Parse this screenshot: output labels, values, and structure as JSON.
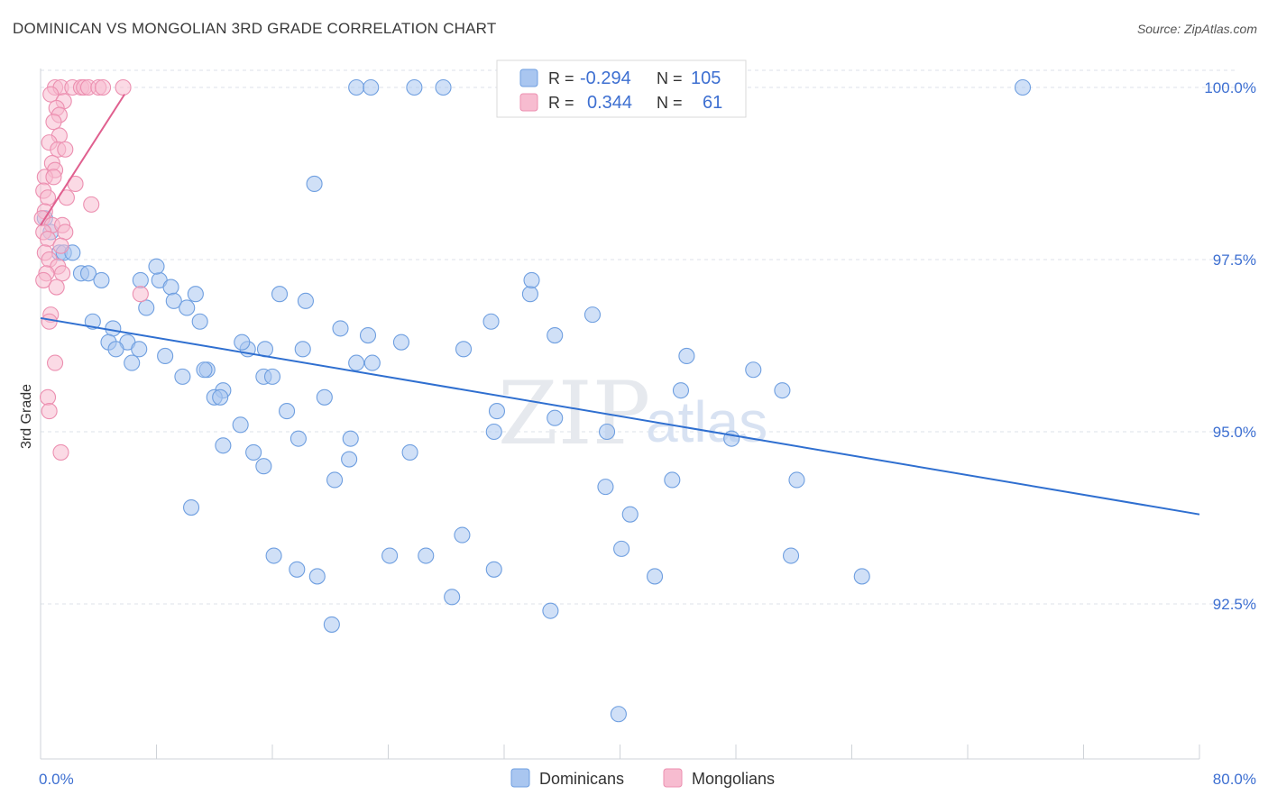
{
  "header": {
    "title": "DOMINICAN VS MONGOLIAN 3RD GRADE CORRELATION CHART",
    "source": "Source: ZipAtlas.com"
  },
  "watermark": {
    "zip": "ZIP",
    "atlas": "atlas"
  },
  "legend_top": {
    "rows": [
      {
        "r_label": "R =",
        "r_value": "-0.294",
        "n_label": "N =",
        "n_value": "105"
      },
      {
        "r_label": "R =",
        "r_value": "0.344",
        "n_label": "N =",
        "n_value": "61"
      }
    ]
  },
  "legend_bottom": {
    "items": [
      "Dominicans",
      "Mongolians"
    ]
  },
  "colors": {
    "dominicans_fill": "#a9c6f0",
    "dominicans_stroke": "#6f9fe0",
    "dominicans_line": "#2f6fd0",
    "mongolians_fill": "#f7bcd0",
    "mongolians_stroke": "#ec8fb0",
    "mongolians_line": "#e0608f",
    "tick_text": "#3d6fd1",
    "grid": "#dde2ea"
  },
  "chart_data": {
    "type": "scatter",
    "title": "DOMINICAN VS MONGOLIAN 3RD GRADE CORRELATION CHART",
    "xlabel": "",
    "ylabel": "3rd Grade",
    "xlim": [
      0,
      80
    ],
    "ylim": [
      90.0,
      101.0
    ],
    "x_tick_labels": [
      "0.0%",
      "80.0%"
    ],
    "y_ticks": [
      92.5,
      95.0,
      97.5,
      100.0
    ],
    "y_tick_labels": [
      "92.5%",
      "95.0%",
      "97.5%",
      "100.0%"
    ],
    "grid": true,
    "legend_position": "bottom-center",
    "series": [
      {
        "name": "Dominicans",
        "r": -0.294,
        "n": 105,
        "trend": {
          "x": [
            0,
            80
          ],
          "y": [
            96.65,
            93.8
          ]
        },
        "points": [
          [
            21.8,
            100.0
          ],
          [
            22.8,
            100.0
          ],
          [
            25.8,
            100.0
          ],
          [
            27.8,
            100.0
          ],
          [
            67.8,
            100.0
          ],
          [
            18.9,
            98.6
          ],
          [
            0.3,
            98.1
          ],
          [
            0.7,
            97.9
          ],
          [
            1.3,
            97.6
          ],
          [
            1.6,
            97.6
          ],
          [
            2.2,
            97.6
          ],
          [
            2.8,
            97.3
          ],
          [
            3.3,
            97.3
          ],
          [
            4.2,
            97.2
          ],
          [
            6.9,
            97.2
          ],
          [
            8.2,
            97.2
          ],
          [
            8.0,
            97.4
          ],
          [
            9.0,
            97.1
          ],
          [
            10.7,
            97.0
          ],
          [
            7.3,
            96.8
          ],
          [
            9.2,
            96.9
          ],
          [
            10.1,
            96.8
          ],
          [
            11.0,
            96.6
          ],
          [
            16.5,
            97.0
          ],
          [
            18.3,
            96.9
          ],
          [
            3.6,
            96.6
          ],
          [
            5.0,
            96.5
          ],
          [
            4.7,
            96.3
          ],
          [
            6.0,
            96.3
          ],
          [
            5.2,
            96.2
          ],
          [
            6.8,
            96.2
          ],
          [
            8.6,
            96.1
          ],
          [
            6.3,
            96.0
          ],
          [
            14.3,
            96.2
          ],
          [
            13.9,
            96.3
          ],
          [
            15.5,
            96.2
          ],
          [
            18.1,
            96.2
          ],
          [
            20.7,
            96.5
          ],
          [
            22.6,
            96.4
          ],
          [
            24.9,
            96.3
          ],
          [
            29.2,
            96.2
          ],
          [
            31.1,
            96.6
          ],
          [
            33.8,
            97.0
          ],
          [
            33.9,
            97.2
          ],
          [
            35.5,
            96.4
          ],
          [
            38.1,
            96.7
          ],
          [
            9.8,
            95.8
          ],
          [
            11.5,
            95.9
          ],
          [
            11.3,
            95.9
          ],
          [
            15.4,
            95.8
          ],
          [
            16.0,
            95.8
          ],
          [
            12.6,
            95.6
          ],
          [
            12.0,
            95.5
          ],
          [
            12.4,
            95.5
          ],
          [
            21.8,
            96.0
          ],
          [
            22.9,
            96.0
          ],
          [
            44.6,
            96.1
          ],
          [
            44.2,
            95.6
          ],
          [
            49.2,
            95.9
          ],
          [
            51.2,
            95.6
          ],
          [
            17.0,
            95.3
          ],
          [
            19.6,
            95.5
          ],
          [
            13.8,
            95.1
          ],
          [
            31.5,
            95.3
          ],
          [
            35.5,
            95.2
          ],
          [
            31.3,
            95.0
          ],
          [
            39.1,
            95.0
          ],
          [
            47.7,
            94.9
          ],
          [
            12.6,
            94.8
          ],
          [
            17.8,
            94.9
          ],
          [
            21.4,
            94.9
          ],
          [
            14.7,
            94.7
          ],
          [
            15.4,
            94.5
          ],
          [
            21.3,
            94.6
          ],
          [
            25.5,
            94.7
          ],
          [
            20.3,
            94.3
          ],
          [
            39.0,
            94.2
          ],
          [
            43.6,
            94.3
          ],
          [
            52.2,
            94.3
          ],
          [
            10.4,
            93.9
          ],
          [
            40.7,
            93.8
          ],
          [
            29.1,
            93.5
          ],
          [
            40.1,
            93.3
          ],
          [
            16.1,
            93.2
          ],
          [
            17.7,
            93.0
          ],
          [
            19.1,
            92.9
          ],
          [
            24.1,
            93.2
          ],
          [
            26.6,
            93.2
          ],
          [
            31.3,
            93.0
          ],
          [
            42.4,
            92.9
          ],
          [
            51.8,
            93.2
          ],
          [
            56.7,
            92.9
          ],
          [
            28.4,
            92.6
          ],
          [
            35.2,
            92.4
          ],
          [
            20.1,
            92.2
          ],
          [
            39.9,
            90.9
          ]
        ]
      },
      {
        "name": "Mongolians",
        "r": 0.344,
        "n": 61,
        "trend": {
          "x": [
            0,
            5.8
          ],
          "y": [
            98.0,
            99.9
          ]
        },
        "points": [
          [
            1.0,
            100.0
          ],
          [
            1.4,
            100.0
          ],
          [
            2.2,
            100.0
          ],
          [
            2.8,
            100.0
          ],
          [
            3.0,
            100.0
          ],
          [
            3.3,
            100.0
          ],
          [
            4.0,
            100.0
          ],
          [
            4.3,
            100.0
          ],
          [
            5.7,
            100.0
          ],
          [
            0.7,
            99.9
          ],
          [
            1.6,
            99.8
          ],
          [
            1.1,
            99.7
          ],
          [
            1.3,
            99.6
          ],
          [
            0.9,
            99.5
          ],
          [
            1.3,
            99.3
          ],
          [
            0.6,
            99.2
          ],
          [
            1.2,
            99.1
          ],
          [
            1.7,
            99.1
          ],
          [
            0.8,
            98.9
          ],
          [
            1.0,
            98.8
          ],
          [
            0.3,
            98.7
          ],
          [
            0.9,
            98.7
          ],
          [
            2.4,
            98.6
          ],
          [
            0.2,
            98.5
          ],
          [
            0.5,
            98.4
          ],
          [
            1.8,
            98.4
          ],
          [
            3.5,
            98.3
          ],
          [
            0.3,
            98.2
          ],
          [
            0.1,
            98.1
          ],
          [
            0.8,
            98.0
          ],
          [
            1.5,
            98.0
          ],
          [
            0.2,
            97.9
          ],
          [
            1.7,
            97.9
          ],
          [
            0.5,
            97.8
          ],
          [
            1.4,
            97.7
          ],
          [
            0.3,
            97.6
          ],
          [
            0.6,
            97.5
          ],
          [
            1.2,
            97.4
          ],
          [
            0.4,
            97.3
          ],
          [
            1.5,
            97.3
          ],
          [
            0.2,
            97.2
          ],
          [
            1.1,
            97.1
          ],
          [
            6.9,
            97.0
          ],
          [
            0.7,
            96.7
          ],
          [
            0.6,
            96.6
          ],
          [
            1.0,
            96.0
          ],
          [
            0.5,
            95.5
          ],
          [
            0.6,
            95.3
          ],
          [
            1.4,
            94.7
          ]
        ]
      }
    ]
  }
}
